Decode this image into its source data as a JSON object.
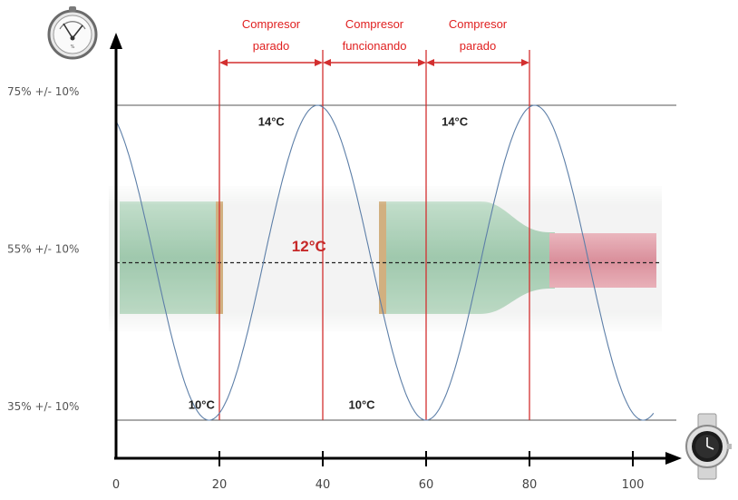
{
  "chart_data": {
    "type": "line",
    "x_ticks": [
      0,
      20,
      40,
      60,
      80,
      100
    ],
    "xlim": [
      0,
      104
    ],
    "y_levels": [
      {
        "label": "75% +/- 10%",
        "value": 75
      },
      {
        "label": "55% +/- 10%",
        "value": 55
      },
      {
        "label": "35% +/- 10%",
        "value": 35
      }
    ],
    "series": [
      {
        "type": "sine",
        "period": 42,
        "trough_x": 18,
        "min": 35,
        "max": 75,
        "color": "#5d7fa8"
      }
    ],
    "phase_boundaries": [
      20,
      40,
      60,
      80
    ],
    "phases": [
      {
        "label_line1": "Compresor",
        "label_line2": "parado",
        "from": 20,
        "to": 40
      },
      {
        "label_line1": "Compresor",
        "label_line2": "funcionando",
        "from": 40,
        "to": 60
      },
      {
        "label_line1": "Compresor",
        "label_line2": "parado",
        "from": 60,
        "to": 80
      }
    ],
    "annotations": [
      {
        "text": "14°C",
        "x": 27.5,
        "y": 73
      },
      {
        "text": "14°C",
        "x": 63,
        "y": 73
      },
      {
        "text": "10°C",
        "x": 14,
        "y": 37
      },
      {
        "text": "10°C",
        "x": 45,
        "y": 37
      },
      {
        "text": "12°C",
        "x": 34,
        "y": 57
      }
    ],
    "mean_line": {
      "value": 55,
      "style": "dashed"
    },
    "colors": {
      "phase_lines": "#d32f2f",
      "phase_text": "#e02020",
      "mid_label": "#c62828",
      "bottle_green": "#9fc9ae",
      "bottle_red": "#d98a95",
      "cork": "#c9a36b"
    },
    "icons": {
      "y_axis": "hygrometer-icon",
      "x_axis": "wristwatch-icon"
    }
  }
}
